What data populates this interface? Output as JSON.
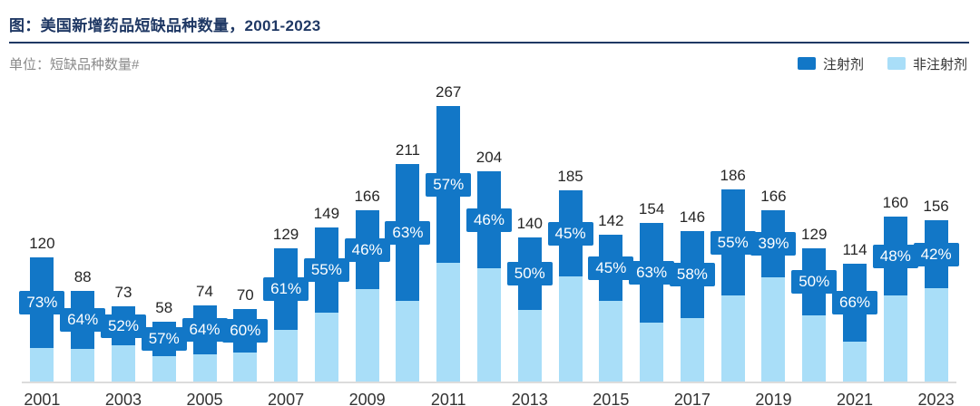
{
  "header": {
    "title": "图：美国新增药品短缺品种数量，2001-2023"
  },
  "subtitle": {
    "unit_label": "单位：短缺品种数量#"
  },
  "legend": {
    "items": [
      {
        "label": "注射剂",
        "color": "#1277c7"
      },
      {
        "label": "非注射剂",
        "color": "#a9def8"
      }
    ]
  },
  "colors": {
    "injectable": "#1277c7",
    "non_injectable": "#a9def8",
    "pct_label_bg": "#1277c7",
    "title_navy": "#1f3864",
    "axis_line": "#dcdcdc"
  },
  "chart_data": {
    "type": "bar",
    "stacked": true,
    "title": "图：美国新增药品短缺品种数量，2001-2023",
    "ylabel": "短缺品种数量#",
    "legend_position": "top-right",
    "grid": false,
    "categories": [
      "2001",
      "2002",
      "2003",
      "2004",
      "2005",
      "2006",
      "2007",
      "2008",
      "2009",
      "2010",
      "2011",
      "2012",
      "2013",
      "2014",
      "2015",
      "2016",
      "2017",
      "2018",
      "2019",
      "2020",
      "2021",
      "2022",
      "2023"
    ],
    "x_tick_labels": [
      "2001",
      "2003",
      "2005",
      "2007",
      "2009",
      "2011",
      "2013",
      "2015",
      "2017",
      "2019",
      "2021",
      "2023"
    ],
    "totals": [
      120,
      88,
      73,
      58,
      74,
      70,
      129,
      149,
      166,
      211,
      267,
      204,
      140,
      185,
      142,
      154,
      146,
      186,
      166,
      129,
      114,
      160,
      156
    ],
    "injectable_pct": [
      73,
      64,
      52,
      57,
      64,
      60,
      61,
      55,
      46,
      63,
      57,
      46,
      50,
      45,
      45,
      63,
      58,
      55,
      39,
      50,
      66,
      48,
      42
    ],
    "pct_labels": [
      "73%",
      "64%",
      "52%",
      "57%",
      "64%",
      "60%",
      "61%",
      "55%",
      "46%",
      "63%",
      "57%",
      "46%",
      "50%",
      "45%",
      "45%",
      "63%",
      "58%",
      "55%",
      "39%",
      "50%",
      "66%",
      "48%",
      "42%"
    ],
    "series": [
      {
        "name": "注射剂",
        "color": "#1277c7",
        "note": "dark top segment, share = injectable_pct of total"
      },
      {
        "name": "非注射剂",
        "color": "#a9def8",
        "note": "light bottom segment, share = 100% - injectable_pct"
      }
    ],
    "ylim": [
      0,
      290
    ]
  }
}
